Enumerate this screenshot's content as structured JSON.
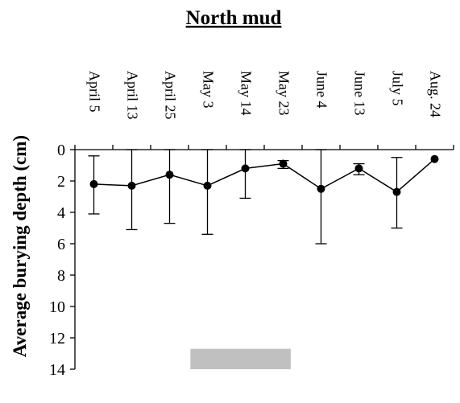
{
  "chart_data": {
    "type": "line",
    "title": "North mud",
    "xlabel": "",
    "ylabel": "Average burying depth (cm)",
    "categories": [
      "April 5",
      "April 13",
      "April 25",
      "May 3",
      "May 14",
      "May 23",
      "June 4",
      "June 13",
      "July 5",
      "Aug. 24"
    ],
    "y_axis": {
      "min": 0,
      "max": 14,
      "inverted": true,
      "ticks": [
        0,
        2,
        4,
        6,
        8,
        10,
        12,
        14
      ]
    },
    "series": [
      {
        "values": [
          2.2,
          2.3,
          1.6,
          2.3,
          1.2,
          0.9,
          2.5,
          1.2,
          2.7,
          0.6
        ],
        "error_low": [
          0.4,
          0.0,
          0.0,
          0.0,
          0.0,
          0.7,
          0.0,
          0.9,
          0.5,
          0.6
        ],
        "error_high": [
          4.1,
          5.1,
          4.7,
          5.4,
          3.1,
          1.2,
          6.0,
          1.6,
          5.0,
          0.6
        ],
        "color": "#000000"
      }
    ],
    "shaded_band": {
      "from_category": "May 3",
      "to_category": "May 23",
      "y_from": 12.7,
      "y_to": 14,
      "color": "#c0c0c0"
    },
    "grid": false,
    "legend": "none"
  }
}
